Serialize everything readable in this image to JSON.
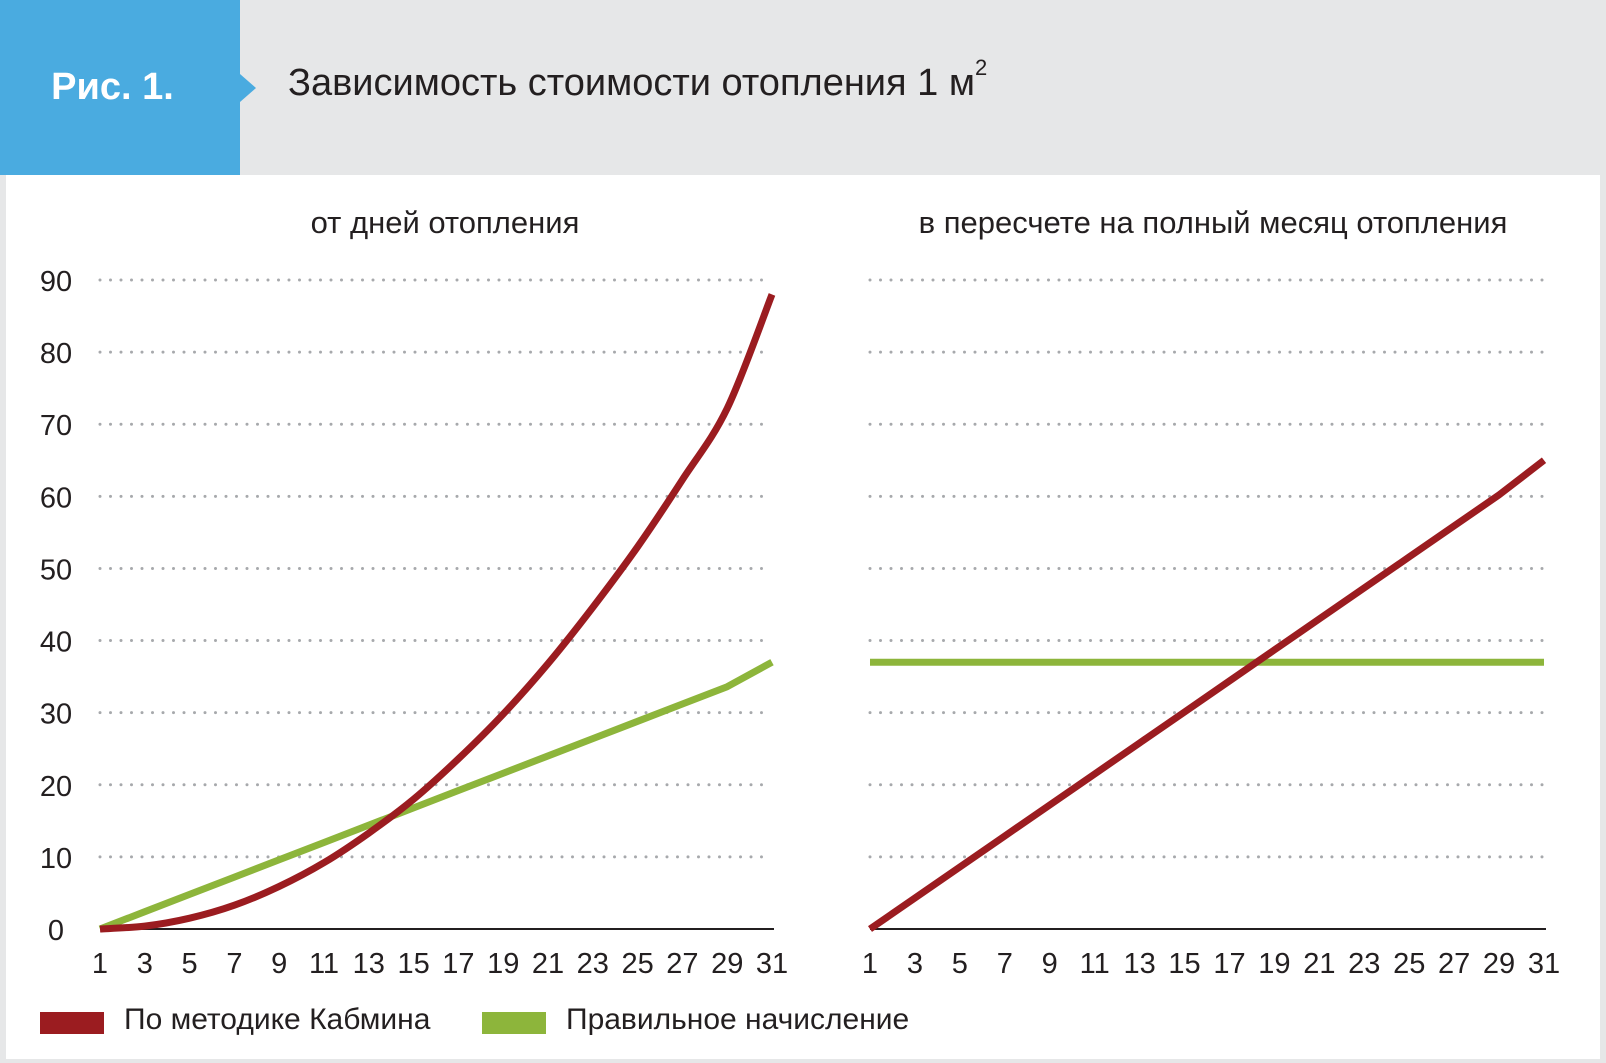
{
  "header": {
    "figure_label": "Рис. 1.",
    "title": "Зависимость стоимости отопления 1 м",
    "title_superscript": "2",
    "accent_color": "#4aabe0"
  },
  "chart_data": [
    {
      "type": "line",
      "title": "от дней отопления",
      "x": [
        1,
        3,
        5,
        7,
        9,
        11,
        13,
        15,
        17,
        19,
        21,
        23,
        25,
        27,
        29,
        31
      ],
      "x_tick_labels": [
        "1",
        "3",
        "5",
        "7",
        "9",
        "11",
        "13",
        "15",
        "17",
        "19",
        "21",
        "23",
        "25",
        "27",
        "29",
        "31"
      ],
      "ylim": [
        0,
        90
      ],
      "y_ticks": [
        0,
        10,
        20,
        30,
        40,
        50,
        60,
        70,
        80,
        90
      ],
      "y_tick_labels": [
        "0",
        "10",
        "20",
        "30",
        "40",
        "50",
        "60",
        "70",
        "80",
        "90"
      ],
      "grid": "horizontal dotted",
      "series": [
        {
          "name": "По методике Кабмина",
          "color": "#9b1c20",
          "values": [
            0,
            0.4,
            1.5,
            3.3,
            5.9,
            9.2,
            13.3,
            18.0,
            23.6,
            29.8,
            36.8,
            44.6,
            53.0,
            62.3,
            72.2,
            88.0
          ]
        },
        {
          "name": "Правильное начисление",
          "color": "#8db53b",
          "values": [
            0,
            2.4,
            4.8,
            7.2,
            9.6,
            12.0,
            14.4,
            16.8,
            19.2,
            21.6,
            24.0,
            26.4,
            28.8,
            31.2,
            33.6,
            37.0
          ]
        }
      ]
    },
    {
      "type": "line",
      "title": "в пересчете на полный месяц отопления",
      "x": [
        1,
        3,
        5,
        7,
        9,
        11,
        13,
        15,
        17,
        19,
        21,
        23,
        25,
        27,
        29,
        31
      ],
      "x_tick_labels": [
        "1",
        "3",
        "5",
        "7",
        "9",
        "11",
        "13",
        "15",
        "17",
        "19",
        "21",
        "23",
        "25",
        "27",
        "29",
        "31"
      ],
      "ylim": [
        0,
        90
      ],
      "y_ticks": [
        0,
        10,
        20,
        30,
        40,
        50,
        60,
        70,
        80,
        90
      ],
      "grid": "horizontal dotted",
      "series": [
        {
          "name": "По методике Кабмина",
          "color": "#9b1c20",
          "values": [
            0,
            4.3,
            8.6,
            12.9,
            17.2,
            21.5,
            25.8,
            30.1,
            34.4,
            38.7,
            43.0,
            47.3,
            51.6,
            55.9,
            60.2,
            65.0
          ]
        },
        {
          "name": "Правильное начисление",
          "color": "#8db53b",
          "values": [
            37,
            37,
            37,
            37,
            37,
            37,
            37,
            37,
            37,
            37,
            37,
            37,
            37,
            37,
            37,
            37
          ]
        }
      ]
    }
  ],
  "legend": {
    "placement": "bottom-left",
    "items": [
      {
        "label": "По методике Кабмина",
        "color": "#9b1c20"
      },
      {
        "label": "Правильное начисление",
        "color": "#8db53b"
      }
    ]
  }
}
